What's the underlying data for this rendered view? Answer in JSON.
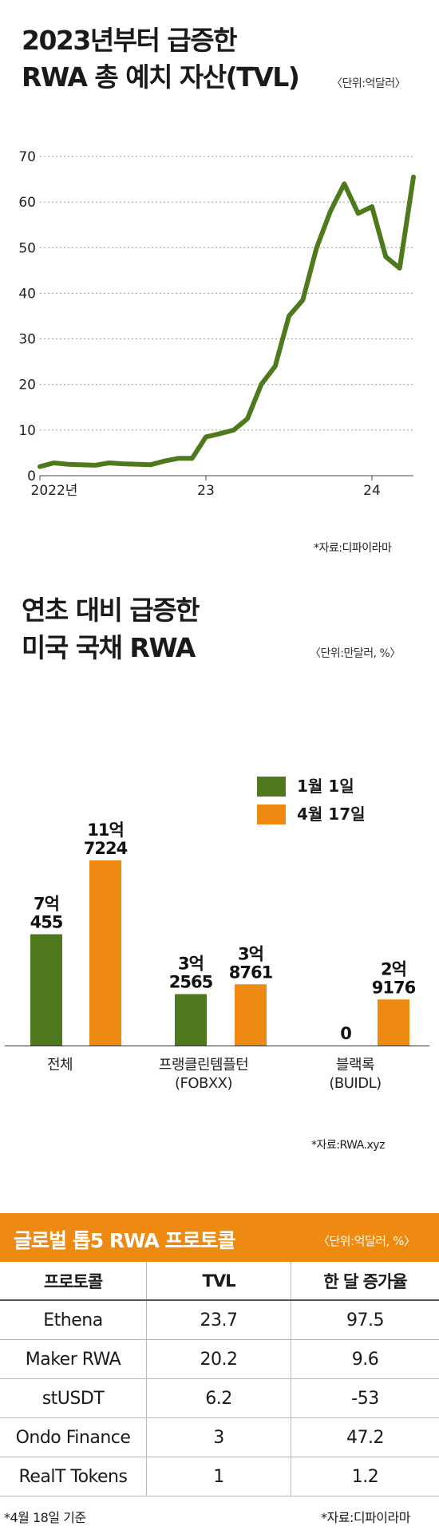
{
  "chart1": {
    "title_line1": "2023년부터 급증한",
    "title_line2": "RWA 총 예치 자산(TVL)",
    "unit": "〈단위:억달러〉",
    "source": "*자료:디파이라마",
    "chart_data": {
      "type": "line",
      "x_ticks": [
        "2022년",
        "23",
        "24"
      ],
      "y_ticks": [
        0,
        10,
        20,
        30,
        40,
        50,
        60,
        70
      ],
      "ylim": [
        0,
        70
      ],
      "xlim": [
        "2022-01",
        "2024-04"
      ],
      "series": [
        {
          "color": "#4e7a1d",
          "x": [
            "2022-01",
            "2022-02",
            "2022-03",
            "2022-05",
            "2022-06",
            "2022-07",
            "2022-09",
            "2022-10",
            "2022-11",
            "2022-12",
            "2023-01",
            "2023-02",
            "2023-03",
            "2023-04",
            "2023-05",
            "2023-06",
            "2023-07",
            "2023-08",
            "2023-09",
            "2023-10",
            "2023-11",
            "2023-12",
            "2024-01",
            "2024-02",
            "2024-03",
            "2024-04"
          ],
          "values": [
            2.0,
            2.8,
            2.5,
            2.3,
            2.8,
            2.6,
            2.4,
            3.2,
            3.8,
            3.8,
            8.5,
            9.2,
            10.0,
            12.5,
            20.0,
            24.0,
            35.0,
            38.5,
            50.0,
            58.0,
            64.0,
            57.5,
            59.0,
            48.0,
            45.5,
            65.5
          ]
        }
      ]
    }
  },
  "chart2": {
    "title_line1": "연초 대비 급증한",
    "title_line2": "미국 국채 RWA",
    "unit": "〈단위:만달러, %〉",
    "source": "*자료:RWA.xyz",
    "legend": [
      {
        "label": "1월 1일",
        "color": "#4e7a1d"
      },
      {
        "label": "4월 17일",
        "color": "#ee8a12"
      }
    ],
    "chart_data": {
      "type": "bar",
      "categories": [
        "전체",
        "프랭클린템플턴\n(FOBXX)",
        "블랙록\n(BUIDL)"
      ],
      "series": [
        {
          "name": "1월 1일",
          "values": [
            70455,
            32565,
            0
          ],
          "labels": [
            "7억\n455",
            "3억\n2565",
            "0"
          ]
        },
        {
          "name": "4월 17일",
          "values": [
            117224,
            38761,
            29176
          ],
          "labels": [
            "11억\n7224",
            "3억\n8761",
            "2억\n9176"
          ]
        }
      ]
    }
  },
  "table": {
    "title": "글로벌 톱5 RWA 프로토콜",
    "unit": "〈단위:억달러, %〉",
    "headers": [
      "프로토콜",
      "TVL",
      "한 달 증가율"
    ],
    "rows": [
      [
        "Ethena",
        "23.7",
        "97.5"
      ],
      [
        "Maker RWA",
        "20.2",
        "9.6"
      ],
      [
        "stUSDT",
        "6.2",
        "-53"
      ],
      [
        "Ondo Finance",
        "3",
        "47.2"
      ],
      [
        "RealT Tokens",
        "1",
        "1.2"
      ]
    ],
    "footnote_left": "*4월 18일 기준",
    "footnote_right": "*자료:디파이라마"
  }
}
